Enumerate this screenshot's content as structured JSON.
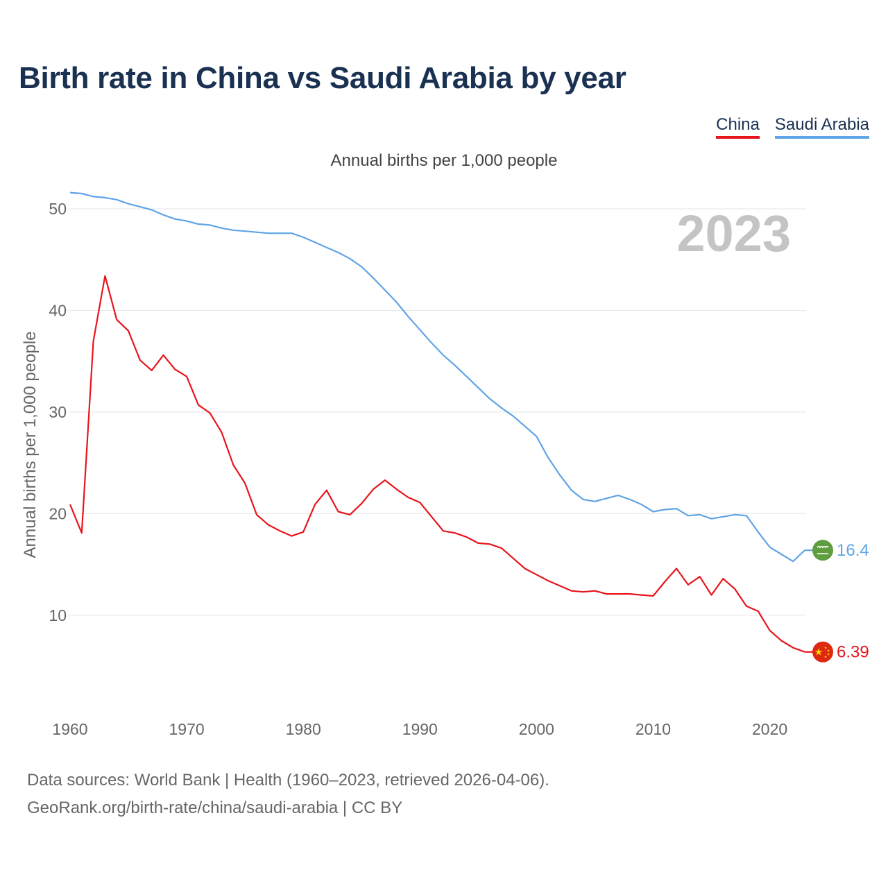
{
  "title": "Birth rate in China vs Saudi Arabia by year",
  "subtitle": "Annual births per 1,000 people",
  "legend": {
    "china": "China",
    "saudi": "Saudi Arabia"
  },
  "footer": {
    "line1": "Data sources: World Bank | Health (1960–2023, retrieved 2026-04-06).",
    "line2": "GeoRank.org/birth-rate/china/saudi-arabia | CC BY"
  },
  "colors": {
    "china": "#e8141c",
    "saudi": "#5fa4e6",
    "title": "#1a3152"
  },
  "chart_data": {
    "type": "line",
    "title": "Birth rate in China vs Saudi Arabia by year",
    "ylabel": "Annual births per 1,000 people",
    "xlabel": "",
    "xlim": [
      1960,
      2023
    ],
    "ylim": [
      3.3,
      52.8
    ],
    "yticks": [
      10,
      20,
      30,
      40,
      50
    ],
    "xticks": [
      1960,
      1970,
      1980,
      1990,
      2000,
      2010,
      2020
    ],
    "grid": true,
    "year_label": "2023",
    "x": [
      1960,
      1961,
      1962,
      1963,
      1964,
      1965,
      1966,
      1967,
      1968,
      1969,
      1970,
      1971,
      1972,
      1973,
      1974,
      1975,
      1976,
      1977,
      1978,
      1979,
      1980,
      1981,
      1982,
      1983,
      1984,
      1985,
      1986,
      1987,
      1988,
      1989,
      1990,
      1991,
      1992,
      1993,
      1994,
      1995,
      1996,
      1997,
      1998,
      1999,
      2000,
      2001,
      2002,
      2003,
      2004,
      2005,
      2006,
      2007,
      2008,
      2009,
      2010,
      2011,
      2012,
      2013,
      2014,
      2015,
      2016,
      2017,
      2018,
      2019,
      2020,
      2021,
      2022,
      2023
    ],
    "series": [
      {
        "name": "China",
        "color": "#e8141c",
        "end_label": "6.39",
        "values": [
          20.9,
          18.1,
          37.0,
          43.4,
          39.1,
          38.0,
          35.1,
          34.1,
          35.6,
          34.2,
          33.5,
          30.7,
          29.9,
          28.0,
          24.8,
          23.0,
          19.9,
          18.9,
          18.3,
          17.8,
          18.2,
          20.9,
          22.3,
          20.2,
          19.9,
          21.0,
          22.4,
          23.3,
          22.4,
          21.6,
          21.1,
          19.7,
          18.3,
          18.1,
          17.7,
          17.1,
          17.0,
          16.6,
          15.6,
          14.6,
          14.0,
          13.4,
          12.9,
          12.4,
          12.3,
          12.4,
          12.1,
          12.1,
          12.1,
          12.0,
          11.9,
          13.3,
          14.6,
          13.0,
          13.8,
          12.0,
          13.6,
          12.6,
          10.9,
          10.4,
          8.5,
          7.5,
          6.8,
          6.39
        ]
      },
      {
        "name": "Saudi Arabia",
        "color": "#5fa4e6",
        "end_label": "16.4",
        "values": [
          51.6,
          51.5,
          51.2,
          51.1,
          50.9,
          50.5,
          50.2,
          49.9,
          49.4,
          49.0,
          48.8,
          48.5,
          48.4,
          48.1,
          47.9,
          47.8,
          47.7,
          47.6,
          47.6,
          47.6,
          47.2,
          46.7,
          46.2,
          45.7,
          45.1,
          44.3,
          43.2,
          42.0,
          40.8,
          39.4,
          38.1,
          36.8,
          35.6,
          34.6,
          33.5,
          32.4,
          31.3,
          30.4,
          29.6,
          28.6,
          27.6,
          25.5,
          23.8,
          22.3,
          21.4,
          21.2,
          21.5,
          21.8,
          21.4,
          20.9,
          20.2,
          20.4,
          20.5,
          19.8,
          19.9,
          19.5,
          19.7,
          19.9,
          19.8,
          18.2,
          16.7,
          16.0,
          15.3,
          16.4
        ]
      }
    ]
  }
}
